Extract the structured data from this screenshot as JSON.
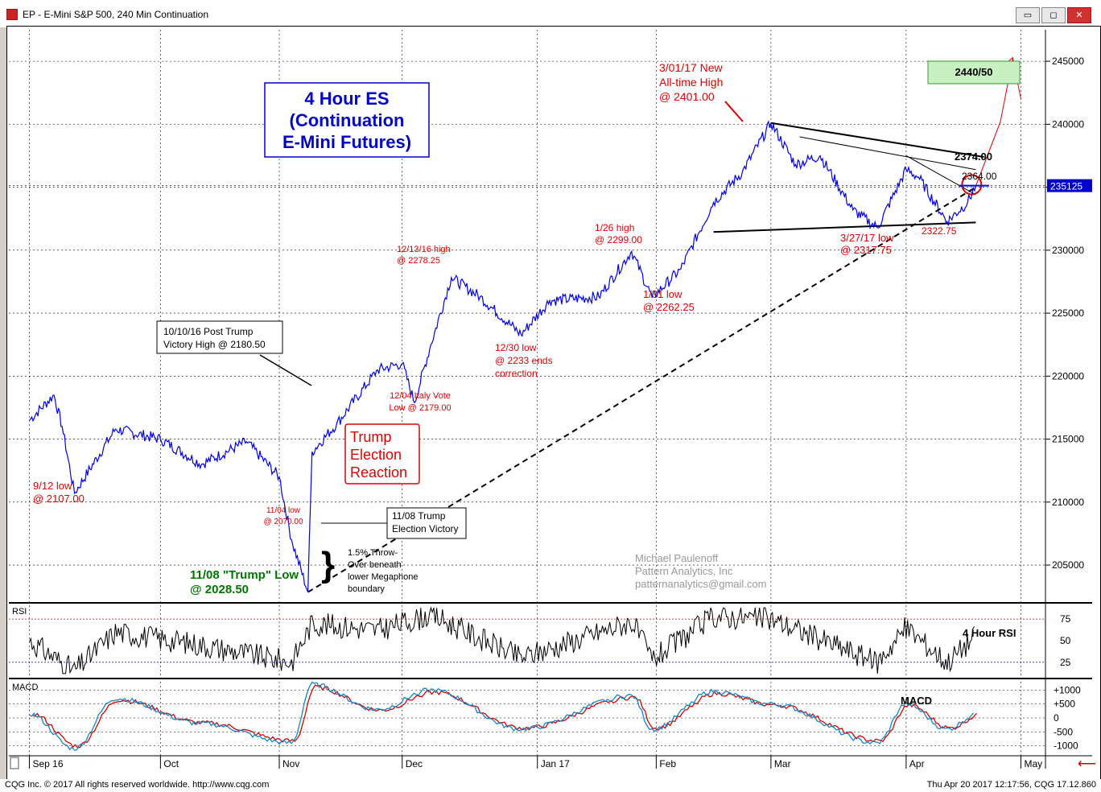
{
  "window": {
    "title": "EP - E-Mini S&P 500, 240 Min Continuation",
    "buttons": [
      "▭",
      "◻",
      "✕"
    ]
  },
  "status": {
    "left": "CQG Inc. © 2017 All rights reserved worldwide. http://www.cqg.com",
    "right": "Thu Apr 20 2017 12:17:56, CQG 17.12.860"
  },
  "colors": {
    "price": "#0000ee",
    "annotation_red": "#dd0000",
    "annotation_green": "#007700",
    "rsi_line": "#000000",
    "macd_red": "#dd0000",
    "macd_blue": "#1188cc",
    "last_price_bg": "#0000cc",
    "target_box": "#c8f0c0"
  },
  "chart_data": [
    {
      "type": "line",
      "name": "price",
      "ylim": [
        202000,
        247500
      ],
      "y_ticks": [
        205000,
        210000,
        215000,
        220000,
        225000,
        230000,
        235000,
        240000,
        245000
      ],
      "x_ticks": [
        "Sep 16",
        "Oct",
        "Nov",
        "Dec",
        "Jan 17",
        "Feb",
        "Mar",
        "Apr",
        "May"
      ],
      "last_price": "235125",
      "series": [
        {
          "x": [
            "2016-09-01",
            "2016-09-07",
            "2016-09-09",
            "2016-09-12",
            "2016-09-22",
            "2016-10-03",
            "2016-10-13",
            "2016-10-24",
            "2016-11-01",
            "2016-11-04",
            "2016-11-08",
            "2016-11-09",
            "2016-11-15",
            "2016-11-25",
            "2016-12-01",
            "2016-12-04",
            "2016-12-08",
            "2016-12-13",
            "2016-12-20",
            "2016-12-30",
            "2017-01-06",
            "2017-01-18",
            "2017-01-26",
            "2017-01-31",
            "2017-02-07",
            "2017-02-15",
            "2017-02-22",
            "2017-03-01",
            "2017-03-07",
            "2017-03-13",
            "2017-03-21",
            "2017-03-27",
            "2017-04-03",
            "2017-04-06",
            "2017-04-13",
            "2017-04-18",
            "2017-04-20"
          ],
          "y": [
            216500,
            218500,
            216000,
            210700,
            215800,
            215000,
            213000,
            214800,
            212000,
            207000,
            202850,
            214000,
            216200,
            220500,
            221000,
            217900,
            222500,
            227825,
            226300,
            223300,
            226000,
            226300,
            229900,
            226225,
            228500,
            233800,
            236200,
            240100,
            236800,
            237500,
            233200,
            231775,
            236400,
            235800,
            232275,
            233800,
            235125
          ]
        }
      ],
      "annotations": {
        "title_box": [
          "4 Hour ES",
          "(Continuation",
          "E-Mini Futures)"
        ],
        "ath": [
          "3/01/17 New",
          "All-time High",
          "@ 2401.00"
        ],
        "target": "2440/50",
        "l2374": "2374.00",
        "l2364": "2364.00",
        "l2322": "2322.75",
        "low0327": [
          "3/27/17 low",
          "@ 2317.75"
        ],
        "high0126": [
          "1/26 high",
          "@ 2299.00"
        ],
        "low0131": [
          "1/31 low",
          "@ 2262.25"
        ],
        "high1213": [
          "12/13/16 high",
          "@ 2278.25"
        ],
        "low1230": [
          "12/30 low",
          "@ 2233 ends",
          "correction"
        ],
        "italy": [
          "12/04 Italy Vote",
          "Low @ 2179.00"
        ],
        "post_trump": [
          "10/10/16 Post Trump",
          "Victory High @ 2180.50"
        ],
        "trump_reaction": [
          "Trump",
          "Election",
          "Reaction"
        ],
        "low0912": [
          "9/12 low",
          "@ 2107.00"
        ],
        "low1104": [
          "11/04 low",
          "@ 2070.00"
        ],
        "victory1108": [
          "11/08 Trump",
          "Election Victory"
        ],
        "throwover": [
          "1.5% Throw-",
          "Over beneath",
          "lower Megaphone",
          "boundary"
        ],
        "trump_low": [
          "11/08 \"Trump\" Low",
          "@ 2028.50"
        ],
        "watermark": [
          "Michael Paulenoff",
          "Pattern Analytics, Inc",
          "patternanalytics@gmail.com"
        ]
      }
    },
    {
      "type": "line",
      "name": "RSI",
      "panel_label": "RSI",
      "ylim": [
        10,
        90
      ],
      "y_ticks": [
        25,
        50,
        75
      ],
      "series_label": "4 Hour RSI",
      "x": [
        "2016-09-01",
        "2016-09-12",
        "2016-09-22",
        "2016-10-13",
        "2016-11-04",
        "2016-11-09",
        "2016-11-25",
        "2016-12-08",
        "2016-12-30",
        "2017-01-26",
        "2017-01-31",
        "2017-02-15",
        "2017-03-01",
        "2017-03-27",
        "2017-04-03",
        "2017-04-13",
        "2017-04-20"
      ],
      "y": [
        50,
        15,
        60,
        45,
        25,
        70,
        62,
        80,
        30,
        72,
        28,
        78,
        75,
        25,
        65,
        25,
        56
      ]
    },
    {
      "type": "line",
      "name": "MACD",
      "panel_label": "MACD",
      "ylim": [
        -1300,
        1300
      ],
      "y_ticks": [
        "+1000",
        "+500",
        "0",
        "-500",
        "-1000"
      ],
      "series_label": "MACD",
      "x": [
        "2016-09-01",
        "2016-09-12",
        "2016-09-22",
        "2016-10-13",
        "2016-11-04",
        "2016-11-09",
        "2016-11-25",
        "2016-12-08",
        "2016-12-30",
        "2017-01-26",
        "2017-01-31",
        "2017-02-15",
        "2017-03-01",
        "2017-03-27",
        "2017-04-03",
        "2017-04-13",
        "2017-04-20"
      ],
      "y": [
        150,
        -1100,
        700,
        -200,
        -900,
        1200,
        300,
        1000,
        -400,
        800,
        -400,
        950,
        500,
        -900,
        500,
        -400,
        100
      ]
    }
  ]
}
